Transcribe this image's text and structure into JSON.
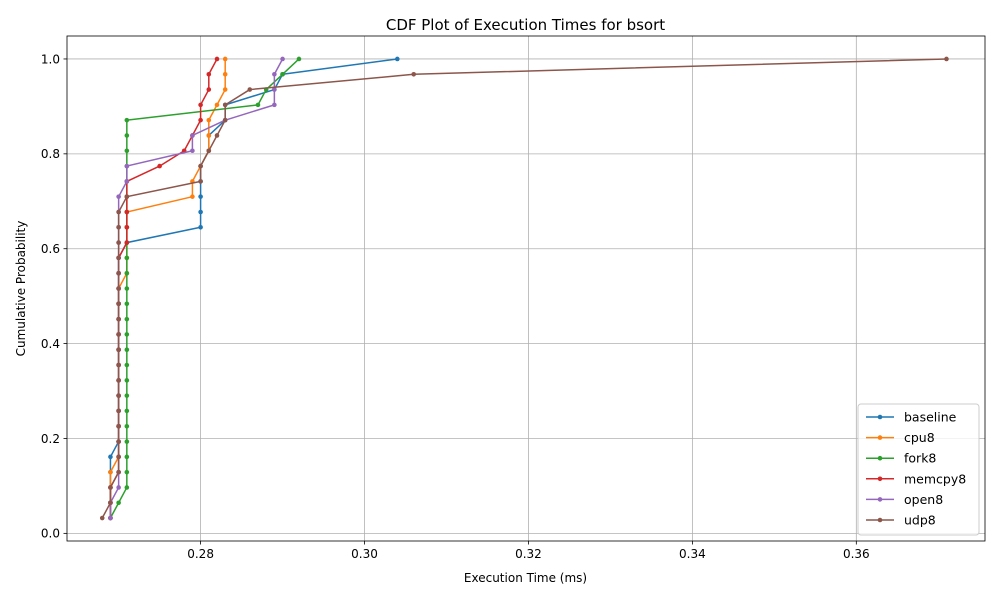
{
  "chart_data": {
    "type": "line",
    "title": "CDF Plot of Execution Times for bsort",
    "xlabel": "Execution Time (ms)",
    "ylabel": "Cumulative Probability",
    "xlim": [
      0.2637,
      0.3757
    ],
    "ylim": [
      -0.0161,
      1.0484
    ],
    "xticks": [
      0.28,
      0.3,
      0.32,
      0.34,
      0.36
    ],
    "xtick_labels": [
      "0.28",
      "0.30",
      "0.32",
      "0.34",
      "0.36"
    ],
    "yticks": [
      0.0,
      0.2,
      0.4,
      0.6,
      0.8,
      1.0
    ],
    "ytick_labels": [
      "0.0",
      "0.2",
      "0.4",
      "0.6",
      "0.8",
      "1.0"
    ],
    "grid": true,
    "legend_position": "lower-right",
    "y_probabilities": [
      0.0323,
      0.0645,
      0.0968,
      0.129,
      0.1613,
      0.1935,
      0.2258,
      0.2581,
      0.2903,
      0.3226,
      0.3548,
      0.3871,
      0.4194,
      0.4516,
      0.4839,
      0.5161,
      0.5484,
      0.5806,
      0.6129,
      0.6452,
      0.6774,
      0.7097,
      0.7419,
      0.7742,
      0.8065,
      0.8387,
      0.871,
      0.9032,
      0.9355,
      0.9677,
      1.0
    ],
    "series": [
      {
        "name": "baseline",
        "color": "#1f77b4",
        "x": [
          0.269,
          0.269,
          0.269,
          0.269,
          0.269,
          0.27,
          0.27,
          0.27,
          0.27,
          0.27,
          0.27,
          0.27,
          0.27,
          0.27,
          0.27,
          0.27,
          0.27,
          0.27,
          0.271,
          0.28,
          0.28,
          0.28,
          0.28,
          0.28,
          0.281,
          0.281,
          0.283,
          0.283,
          0.289,
          0.29,
          0.304
        ]
      },
      {
        "name": "cpu8",
        "color": "#ff7f0e",
        "x": [
          0.269,
          0.269,
          0.269,
          0.269,
          0.27,
          0.27,
          0.27,
          0.27,
          0.27,
          0.27,
          0.27,
          0.27,
          0.27,
          0.27,
          0.27,
          0.27,
          0.271,
          0.271,
          0.271,
          0.271,
          0.271,
          0.279,
          0.279,
          0.28,
          0.281,
          0.281,
          0.281,
          0.282,
          0.283,
          0.283,
          0.283
        ]
      },
      {
        "name": "fork8",
        "color": "#2ca02c",
        "x": [
          0.269,
          0.27,
          0.271,
          0.271,
          0.271,
          0.271,
          0.271,
          0.271,
          0.271,
          0.271,
          0.271,
          0.271,
          0.271,
          0.271,
          0.271,
          0.271,
          0.271,
          0.271,
          0.271,
          0.271,
          0.271,
          0.271,
          0.271,
          0.271,
          0.271,
          0.271,
          0.271,
          0.287,
          0.288,
          0.29,
          0.292
        ]
      },
      {
        "name": "memcpy8",
        "color": "#d62728",
        "x": [
          0.269,
          0.269,
          0.269,
          0.27,
          0.27,
          0.27,
          0.27,
          0.27,
          0.27,
          0.27,
          0.27,
          0.27,
          0.27,
          0.27,
          0.27,
          0.27,
          0.27,
          0.27,
          0.271,
          0.271,
          0.271,
          0.271,
          0.271,
          0.275,
          0.278,
          0.279,
          0.28,
          0.28,
          0.281,
          0.281,
          0.282
        ]
      },
      {
        "name": "open8",
        "color": "#9467bd",
        "x": [
          0.269,
          0.269,
          0.27,
          0.27,
          0.27,
          0.27,
          0.27,
          0.27,
          0.27,
          0.27,
          0.27,
          0.27,
          0.27,
          0.27,
          0.27,
          0.27,
          0.27,
          0.27,
          0.27,
          0.27,
          0.27,
          0.27,
          0.271,
          0.271,
          0.279,
          0.279,
          0.283,
          0.289,
          0.289,
          0.289,
          0.29
        ]
      },
      {
        "name": "udp8",
        "color": "#8c564b",
        "x": [
          0.268,
          0.269,
          0.269,
          0.27,
          0.27,
          0.27,
          0.27,
          0.27,
          0.27,
          0.27,
          0.27,
          0.27,
          0.27,
          0.27,
          0.27,
          0.27,
          0.27,
          0.27,
          0.27,
          0.27,
          0.27,
          0.271,
          0.28,
          0.28,
          0.281,
          0.282,
          0.283,
          0.283,
          0.286,
          0.306,
          0.371
        ]
      }
    ]
  }
}
